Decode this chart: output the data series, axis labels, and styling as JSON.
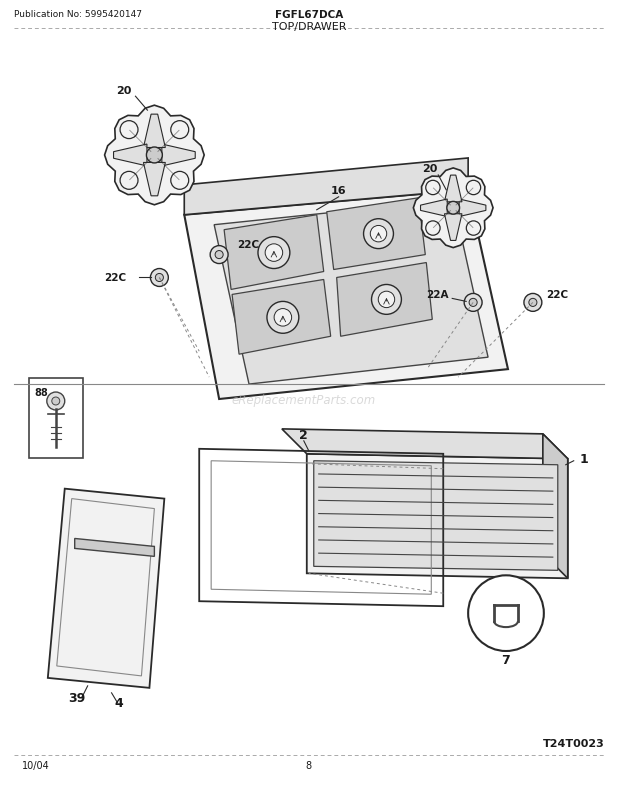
{
  "title_model": "FGFL67DCA",
  "title_section": "TOP/DRAWER",
  "pub_no": "Publication No: 5995420147",
  "date": "10/04",
  "page": "8",
  "watermark": "eReplacementParts.com",
  "diagram_id": "T24T0023",
  "bg_color": "#ffffff",
  "line_color": "#2a2a2a",
  "text_color": "#1a1a1a",
  "mid_gray": "#888888",
  "dark_gray": "#444444",
  "fill_light": "#f2f2f2",
  "fill_mid": "#e0e0e0",
  "fill_dark": "#cccccc"
}
